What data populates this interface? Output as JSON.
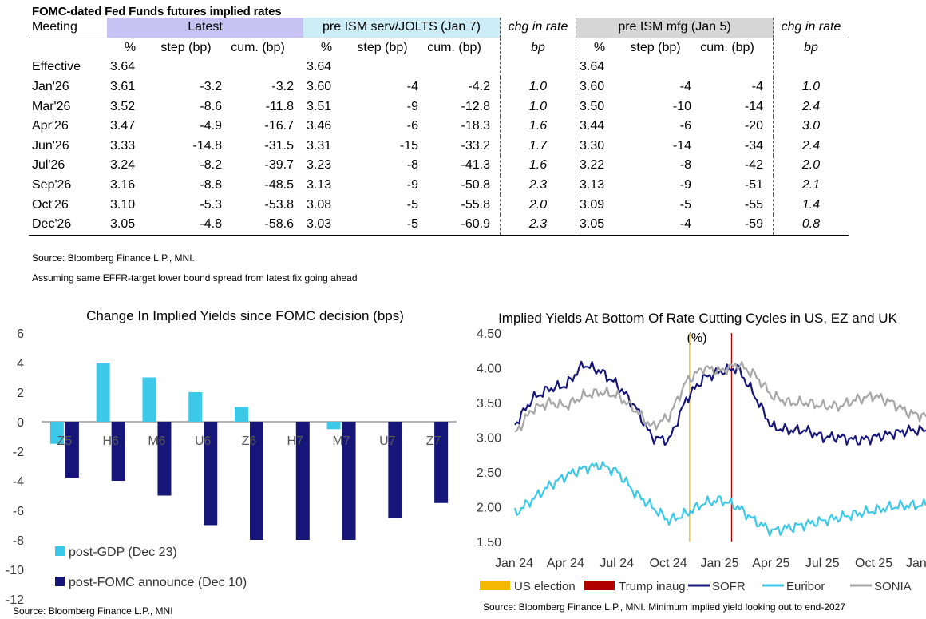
{
  "table": {
    "title": "FOMC-dated Fed Funds futures implied rates",
    "meeting_label": "Meeting",
    "groups": [
      "Latest",
      "pre ISM serv/JOLTS (Jan 7)",
      "chg in rate",
      "pre ISM mfg (Jan 5)",
      "chg in rate"
    ],
    "subheaders": [
      "%",
      "step (bp)",
      "cum. (bp)",
      "%",
      "step (bp)",
      "cum. (bp)",
      "bp",
      "%",
      "step (bp)",
      "cum. (bp)",
      "bp"
    ],
    "rows": [
      {
        "meeting": "Effective",
        "cells": [
          "3.64",
          "",
          "",
          "3.64",
          "",
          "",
          "",
          "3.64",
          "",
          "",
          ""
        ]
      },
      {
        "meeting": "Jan'26",
        "cells": [
          "3.61",
          "-3.2",
          "-3.2",
          "3.60",
          "-4",
          "-4.2",
          "1.0",
          "3.60",
          "-4",
          "-4",
          "1.0"
        ]
      },
      {
        "meeting": "Mar'26",
        "cells": [
          "3.52",
          "-8.6",
          "-11.8",
          "3.51",
          "-9",
          "-12.8",
          "1.0",
          "3.50",
          "-10",
          "-14",
          "2.4"
        ]
      },
      {
        "meeting": "Apr'26",
        "cells": [
          "3.47",
          "-4.9",
          "-16.7",
          "3.46",
          "-6",
          "-18.3",
          "1.6",
          "3.44",
          "-6",
          "-20",
          "3.0"
        ]
      },
      {
        "meeting": "Jun'26",
        "cells": [
          "3.33",
          "-14.8",
          "-31.5",
          "3.31",
          "-15",
          "-33.2",
          "1.7",
          "3.30",
          "-14",
          "-34",
          "2.4"
        ]
      },
      {
        "meeting": "Jul'26",
        "cells": [
          "3.24",
          "-8.2",
          "-39.7",
          "3.23",
          "-8",
          "-41.3",
          "1.6",
          "3.22",
          "-8",
          "-42",
          "2.0"
        ]
      },
      {
        "meeting": "Sep'26",
        "cells": [
          "3.16",
          "-8.8",
          "-48.5",
          "3.13",
          "-9",
          "-50.8",
          "2.3",
          "3.13",
          "-9",
          "-51",
          "2.1"
        ]
      },
      {
        "meeting": "Oct'26",
        "cells": [
          "3.10",
          "-5.3",
          "-53.8",
          "3.08",
          "-5",
          "-55.8",
          "2.0",
          "3.09",
          "-5",
          "-55",
          "1.4"
        ]
      },
      {
        "meeting": "Dec'26",
        "cells": [
          "3.05",
          "-4.8",
          "-58.6",
          "3.03",
          "-5",
          "-60.9",
          "2.3",
          "3.05",
          "-4",
          "-59",
          "0.8"
        ]
      }
    ],
    "source": "Source: Bloomberg Finance L.P., MNI.",
    "note": "Assuming same  EFFR-target lower bound spread from latest fix going ahead"
  },
  "colors": {
    "cyan": "#3cc8e8",
    "navy": "#16167a",
    "gray": "#a6a6a6",
    "orange": "#f5b800",
    "red": "#b00000"
  },
  "chart_data": [
    {
      "type": "bar",
      "title": "Change In Implied Yields since FOMC decision (bps)",
      "categories": [
        "Z5",
        "H6",
        "M6",
        "U6",
        "Z6",
        "H7",
        "M7",
        "U7",
        "Z7"
      ],
      "series": [
        {
          "name": "post-GDP (Dec 23)",
          "values": [
            -1.5,
            4,
            3,
            2,
            1,
            0,
            -0.5,
            0,
            0
          ]
        },
        {
          "name": "post-FOMC announce (Dec 10)",
          "values": [
            -3.8,
            -4,
            -5,
            -7,
            -8,
            -8,
            -8,
            -6.5,
            -5.5
          ]
        }
      ],
      "ylim": [
        -12,
        6
      ],
      "yticks": [
        "6",
        "4",
        "2",
        "0",
        "-2",
        "-4",
        "-6",
        "-8",
        "-10",
        "-12"
      ],
      "source": "Source: Bloomberg Finance L.P., MNI"
    },
    {
      "type": "line",
      "title": "Implied Yields At Bottom Of Rate Cutting Cycles in US, EZ and UK",
      "ylabel": "(%)",
      "ylim": [
        1.5,
        4.5
      ],
      "yticks": [
        "4.50",
        "4.00",
        "3.50",
        "3.00",
        "2.50",
        "2.00",
        "1.50"
      ],
      "xticks": [
        "Jan 24",
        "Apr 24",
        "Jul 24",
        "Oct 24",
        "Jan 25",
        "Apr 25",
        "Jul 25",
        "Oct 25",
        "Jan 26"
      ],
      "x_months": [
        0,
        1,
        2,
        3,
        4,
        5,
        6,
        7,
        8,
        9,
        10,
        11,
        12,
        13,
        14,
        15,
        16,
        17,
        18,
        19,
        20,
        21,
        22,
        23,
        24
      ],
      "series": [
        {
          "name": "SOFR",
          "values": [
            3.18,
            3.55,
            3.7,
            3.75,
            4.05,
            3.95,
            3.75,
            3.45,
            3.0,
            2.95,
            3.55,
            3.85,
            3.95,
            4.0,
            3.6,
            3.15,
            3.1,
            3.1,
            3.0,
            3.0,
            2.95,
            3.0,
            3.05,
            3.1,
            3.1
          ]
        },
        {
          "name": "Euribor",
          "values": [
            1.9,
            2.1,
            2.3,
            2.45,
            2.55,
            2.6,
            2.5,
            2.2,
            2.0,
            1.8,
            1.9,
            2.05,
            2.1,
            2.0,
            1.8,
            1.65,
            1.7,
            1.75,
            1.8,
            1.85,
            1.9,
            1.95,
            2.0,
            2.02,
            2.02
          ]
        },
        {
          "name": "SONIA",
          "values": [
            3.05,
            3.4,
            3.5,
            3.45,
            3.6,
            3.65,
            3.6,
            3.4,
            3.15,
            3.3,
            3.8,
            4.0,
            3.95,
            4.05,
            3.9,
            3.6,
            3.5,
            3.5,
            3.45,
            3.45,
            3.55,
            3.6,
            3.5,
            3.35,
            3.3
          ]
        }
      ],
      "events": [
        {
          "name": "US election",
          "month": 10.2
        },
        {
          "name": "Trump inaug.",
          "month": 12.65
        }
      ],
      "legend": [
        "US election",
        "Trump inaug.",
        "SOFR",
        "Euribor",
        "SONIA"
      ],
      "source": "Source: Bloomberg Finance L.P., MNI. Minimum implied yield looking out to end-2027"
    }
  ]
}
